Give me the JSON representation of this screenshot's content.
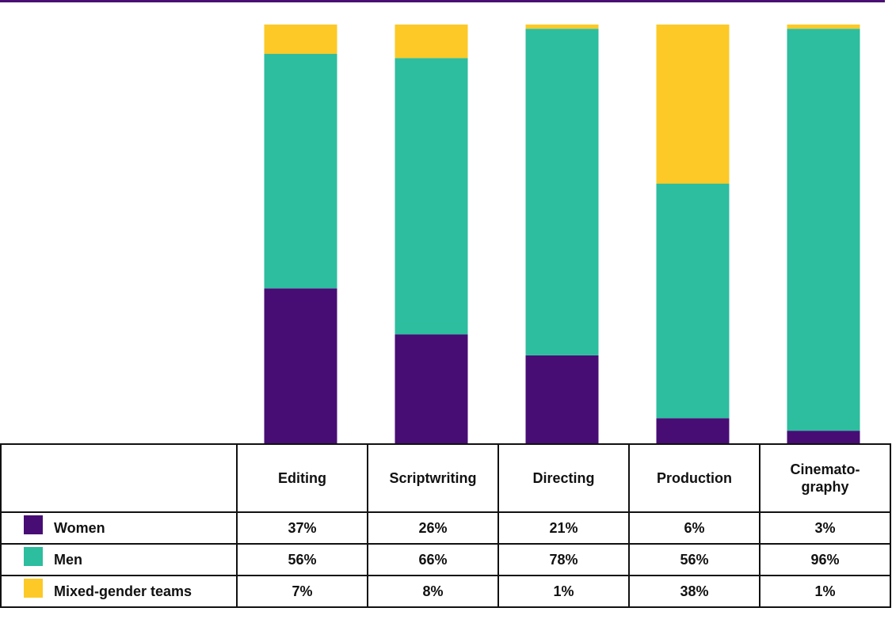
{
  "chart_data": {
    "type": "bar",
    "stacked": true,
    "categories": [
      "Editing",
      "Scriptwriting",
      "Directing",
      "Production",
      "Cinemato-\ngraphy"
    ],
    "series": [
      {
        "name": "Women",
        "values": [
          37,
          26,
          21,
          6,
          3
        ],
        "labels": [
          "37%",
          "26%",
          "21%",
          "6%",
          "3%"
        ],
        "color": "#470d75"
      },
      {
        "name": "Men",
        "values": [
          56,
          66,
          78,
          56,
          96
        ],
        "labels": [
          "56%",
          "66%",
          "78%",
          "56%",
          "96%"
        ],
        "color": "#2dbd9f"
      },
      {
        "name": "Mixed-gender teams",
        "values": [
          7,
          8,
          1,
          38,
          1
        ],
        "labels": [
          "7%",
          "8%",
          "1%",
          "38%",
          "1%"
        ],
        "color": "#fcc927"
      }
    ],
    "ylim": [
      0,
      100
    ],
    "grid": false,
    "legend": "table-left",
    "accent_color": "#4a0f73"
  }
}
